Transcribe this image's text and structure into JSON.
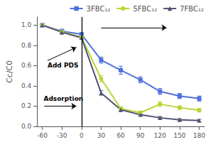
{
  "chart_data": {
    "type": "line",
    "y_label": "Cc/C0",
    "x": [
      -60,
      -30,
      0,
      30,
      60,
      90,
      120,
      150,
      180
    ],
    "series": [
      {
        "name": "3FBC₁₂",
        "marker": "square",
        "values": [
          1.0,
          0.94,
          0.91,
          0.655,
          0.555,
          0.46,
          0.345,
          0.3,
          0.275
        ],
        "yerr": [
          0.012,
          0.02,
          0.015,
          0.03,
          0.04,
          0.03,
          0.03,
          0.025,
          0.025
        ]
      },
      {
        "name": "5FBC₁₂",
        "marker": "circle",
        "values": [
          1.0,
          0.935,
          0.88,
          0.47,
          0.175,
          0.135,
          0.22,
          0.185,
          0.16
        ],
        "yerr": [
          0.012,
          0.018,
          0.015,
          0.03,
          0.018,
          0.018,
          0.022,
          0.018,
          0.018
        ]
      },
      {
        "name": "7FBC₁₂",
        "marker": "triangle",
        "values": [
          1.0,
          0.93,
          0.875,
          0.33,
          0.165,
          0.115,
          0.085,
          0.065,
          0.058
        ],
        "yerr": [
          0.012,
          0.018,
          0.015,
          0.022,
          0.018,
          0.014,
          0.013,
          0.012,
          0.012
        ]
      }
    ],
    "xlim": [
      -68,
      188
    ],
    "xticks": [
      -60,
      -30,
      0,
      30,
      60,
      90,
      120,
      150,
      180
    ],
    "ylim": [
      0.0,
      1.08
    ],
    "yticks": [
      {
        "value": 0.0,
        "label": "0.0"
      },
      0.2,
      0.4,
      0.6,
      0.8,
      {
        "value": 1.0,
        "label": "1.0"
      }
    ],
    "grid": false,
    "legend": "upper right",
    "vlines": [
      0
    ],
    "annotations": [
      {
        "text": "Adsorption",
        "x": -58,
        "y": 0.235
      },
      {
        "text": "Add PDS",
        "x": -52,
        "y": 0.65,
        "arrow_to": [
          -8,
          0.78
        ]
      }
    ],
    "arrows": [
      {
        "from": [
          -57,
          0.2
        ],
        "to": [
          -8,
          0.2
        ]
      },
      {
        "from": [
          30,
          0.975
        ],
        "to": [
          130,
          0.975
        ]
      }
    ]
  }
}
